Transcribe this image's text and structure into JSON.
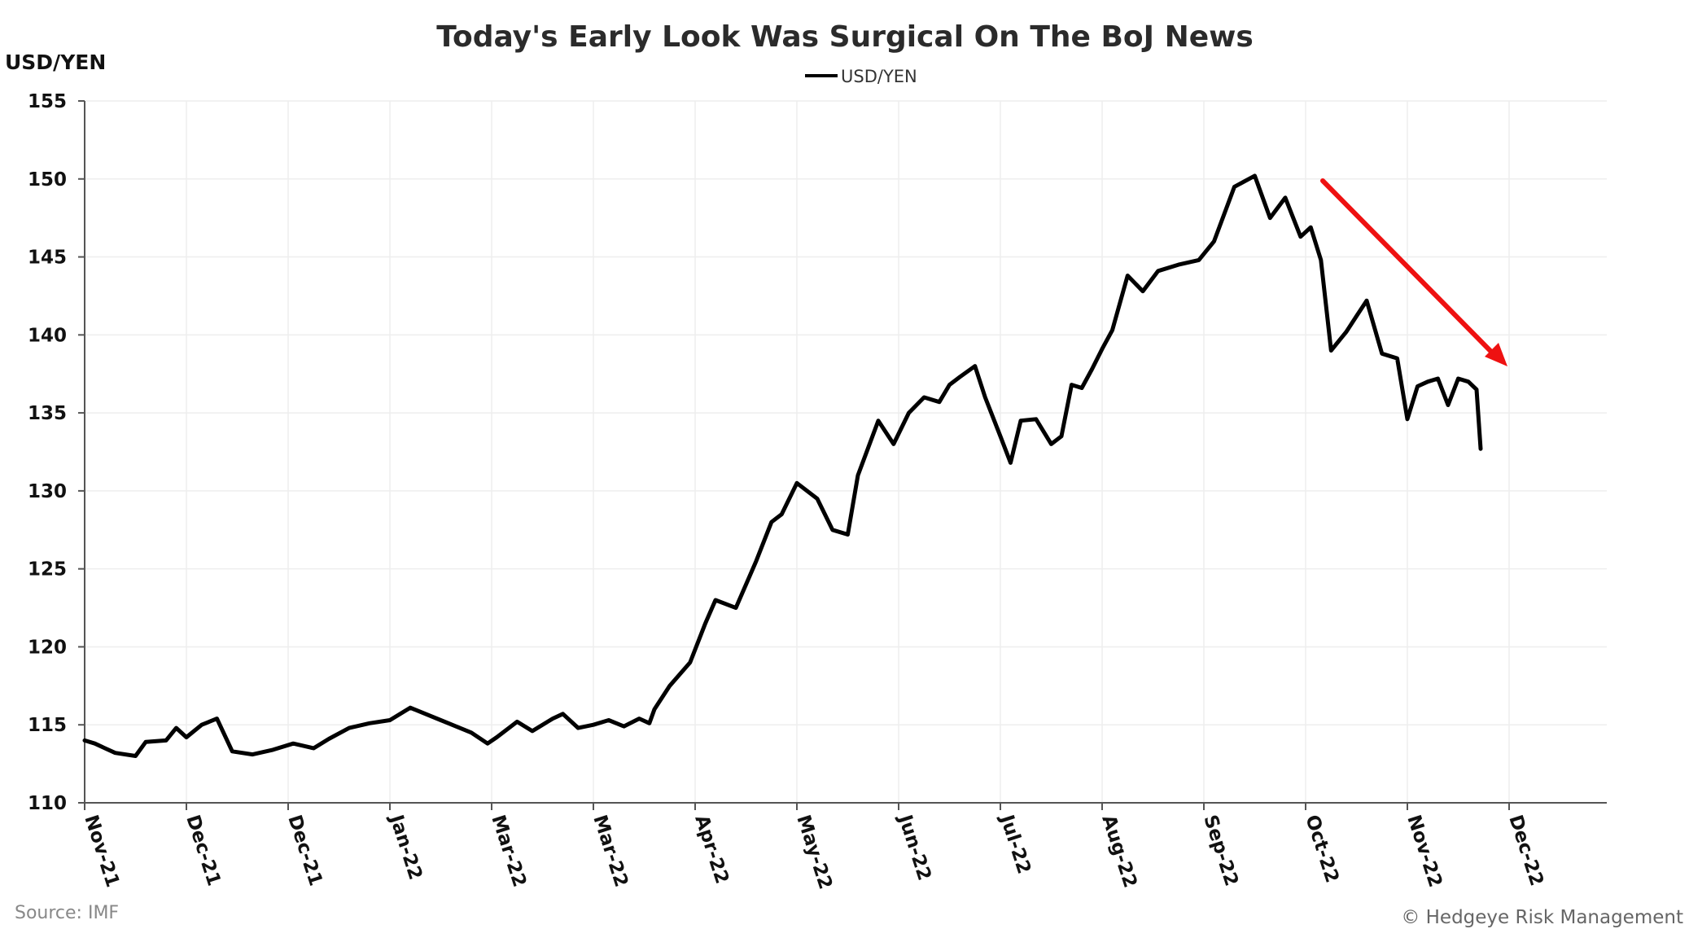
{
  "chart_data": {
    "type": "line",
    "title": "Today's Early Look Was Surgical On The BoJ News",
    "ylabel": "USD/YEN",
    "xlabel": "",
    "ylim": [
      110,
      155
    ],
    "yticks": [
      110,
      115,
      120,
      125,
      130,
      135,
      140,
      145,
      150,
      155
    ],
    "xtick_labels": [
      "Nov-21",
      "Dec-21",
      "Dec-21",
      "Jan-22",
      "Mar-22",
      "Mar-22",
      "Apr-22",
      "May-22",
      "Jun-22",
      "Jul-22",
      "Aug-22",
      "Sep-22",
      "Oct-22",
      "Nov-22",
      "Dec-22"
    ],
    "grid": true,
    "legend": {
      "position": "top-center",
      "entries": [
        "USD/YEN"
      ]
    },
    "line_color": "#000000",
    "annotation": {
      "type": "downtrend-arrow",
      "color": "#ee1111"
    },
    "series": [
      {
        "name": "USD/YEN",
        "x_tick_index": [
          0,
          0.1,
          0.2,
          0.3,
          0.5,
          0.6,
          0.8,
          0.9,
          1.0,
          1.15,
          1.3,
          1.45,
          1.65,
          1.85,
          2.05,
          2.25,
          2.4,
          2.6,
          2.8,
          3.0,
          3.2,
          3.5,
          3.8,
          3.96,
          4.05,
          4.25,
          4.4,
          4.5,
          4.6,
          4.7,
          4.85,
          5.0,
          5.15,
          5.3,
          5.45,
          5.55,
          5.6,
          5.75,
          5.95,
          6.1,
          6.2,
          6.4,
          6.6,
          6.75,
          6.85,
          7.0,
          7.2,
          7.35,
          7.5,
          7.6,
          7.8,
          7.95,
          8.1,
          8.25,
          8.4,
          8.5,
          8.6,
          8.75,
          8.85,
          9.0,
          9.1,
          9.2,
          9.35,
          9.5,
          9.6,
          9.7,
          9.8,
          9.9,
          10.0,
          10.1,
          10.25,
          10.4,
          10.55,
          10.75,
          10.95,
          11.1,
          11.3,
          11.5,
          11.65,
          11.8,
          11.95,
          12.05,
          12.15,
          12.25,
          12.4,
          12.5,
          12.6,
          12.75,
          12.9,
          13.0,
          13.1,
          13.2,
          13.3,
          13.4,
          13.5,
          13.6,
          13.68,
          13.72
        ],
        "values": [
          114.0,
          113.8,
          113.5,
          113.2,
          113.0,
          113.9,
          114.0,
          114.8,
          114.2,
          115.0,
          115.4,
          113.3,
          113.1,
          113.4,
          113.8,
          113.5,
          114.1,
          114.8,
          115.1,
          115.3,
          116.1,
          115.3,
          114.5,
          113.8,
          114.2,
          115.2,
          114.6,
          115.0,
          115.4,
          115.7,
          114.8,
          115.0,
          115.3,
          114.9,
          115.4,
          115.1,
          116.0,
          117.5,
          119.0,
          121.5,
          123.0,
          122.5,
          125.5,
          128.0,
          128.5,
          130.5,
          129.5,
          127.5,
          127.2,
          131.0,
          134.5,
          133.0,
          135.0,
          136.0,
          135.7,
          136.8,
          137.3,
          138.0,
          136.0,
          133.5,
          131.8,
          134.5,
          134.6,
          133.0,
          133.5,
          136.8,
          136.6,
          137.8,
          139.1,
          140.3,
          143.8,
          142.8,
          144.1,
          144.5,
          144.8,
          146.0,
          149.5,
          150.2,
          147.5,
          148.8,
          146.3,
          146.9,
          144.8,
          139.0,
          140.2,
          141.2,
          142.2,
          138.8,
          138.5,
          134.6,
          136.7,
          137.0,
          137.2,
          135.5,
          137.2,
          137.0,
          136.5,
          132.7
        ]
      }
    ]
  },
  "source": "Source: IMF",
  "credit": "© Hedgeye Risk Management"
}
